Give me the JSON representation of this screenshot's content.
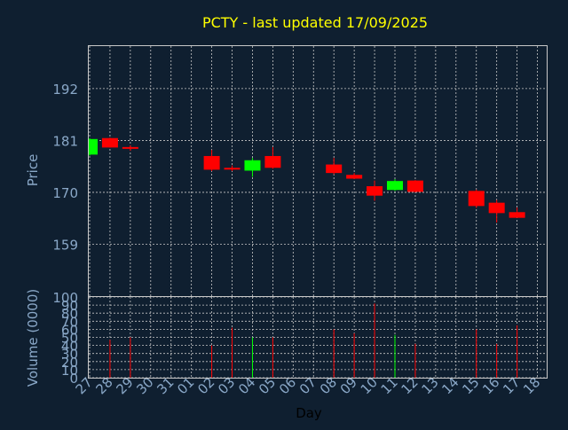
{
  "chart_data": {
    "type": "candlestick",
    "title": "PCTY - last updated 17/09/2025",
    "xlabel": "Day",
    "price_panel": {
      "ylabel": "Price",
      "yticks": [
        159,
        170,
        181,
        192
      ],
      "ylim": [
        148,
        201
      ]
    },
    "volume_panel": {
      "ylabel": "Volume (0000)",
      "yticks": [
        0,
        10,
        20,
        30,
        40,
        50,
        60,
        70,
        80,
        90,
        100
      ],
      "ylim": [
        0,
        100
      ]
    },
    "xticks": [
      "27",
      "28",
      "29",
      "30",
      "31",
      "01",
      "02",
      "03",
      "04",
      "05",
      "06",
      "07",
      "08",
      "09",
      "10",
      "11",
      "12",
      "13",
      "14",
      "15",
      "16",
      "17",
      "18"
    ],
    "grid": true,
    "up_color": "#00ff00",
    "down_color": "#ff0000",
    "candles": [
      {
        "x": 0,
        "open": 178.0,
        "high": 181.5,
        "low": 177.8,
        "close": 181.3,
        "volume": 0
      },
      {
        "x": 1,
        "open": 181.5,
        "high": 181.6,
        "low": 179.5,
        "close": 179.5,
        "volume": 47
      },
      {
        "x": 2,
        "open": 179.6,
        "high": 180.0,
        "low": 178.8,
        "close": 179.4,
        "volume": 50
      },
      {
        "x": 6,
        "open": 177.7,
        "high": 179.0,
        "low": 174.5,
        "close": 174.8,
        "volume": 40
      },
      {
        "x": 7,
        "open": 175.2,
        "high": 175.7,
        "low": 174.5,
        "close": 174.9,
        "volume": 62
      },
      {
        "x": 8,
        "open": 174.6,
        "high": 177.3,
        "low": 173.3,
        "close": 176.8,
        "volume": 50
      },
      {
        "x": 9,
        "open": 177.7,
        "high": 179.6,
        "low": 175.0,
        "close": 175.2,
        "volume": 50
      },
      {
        "x": 12,
        "open": 175.9,
        "high": 177.3,
        "low": 173.8,
        "close": 174.1,
        "volume": 60
      },
      {
        "x": 13,
        "open": 173.7,
        "high": 174.1,
        "low": 172.8,
        "close": 172.9,
        "volume": 55
      },
      {
        "x": 14,
        "open": 171.3,
        "high": 172.5,
        "low": 168.2,
        "close": 169.3,
        "volume": 92
      },
      {
        "x": 15,
        "open": 170.5,
        "high": 172.8,
        "low": 170.3,
        "close": 172.4,
        "volume": 53
      },
      {
        "x": 16,
        "open": 172.5,
        "high": 172.6,
        "low": 170.0,
        "close": 170.1,
        "volume": 42
      },
      {
        "x": 19,
        "open": 170.3,
        "high": 170.6,
        "low": 166.7,
        "close": 167.1,
        "volume": 60
      },
      {
        "x": 20,
        "open": 167.8,
        "high": 168.4,
        "low": 163.6,
        "close": 165.6,
        "volume": 42
      },
      {
        "x": 21,
        "open": 165.8,
        "high": 166.8,
        "low": 164.6,
        "close": 164.6,
        "volume": 65
      }
    ]
  }
}
